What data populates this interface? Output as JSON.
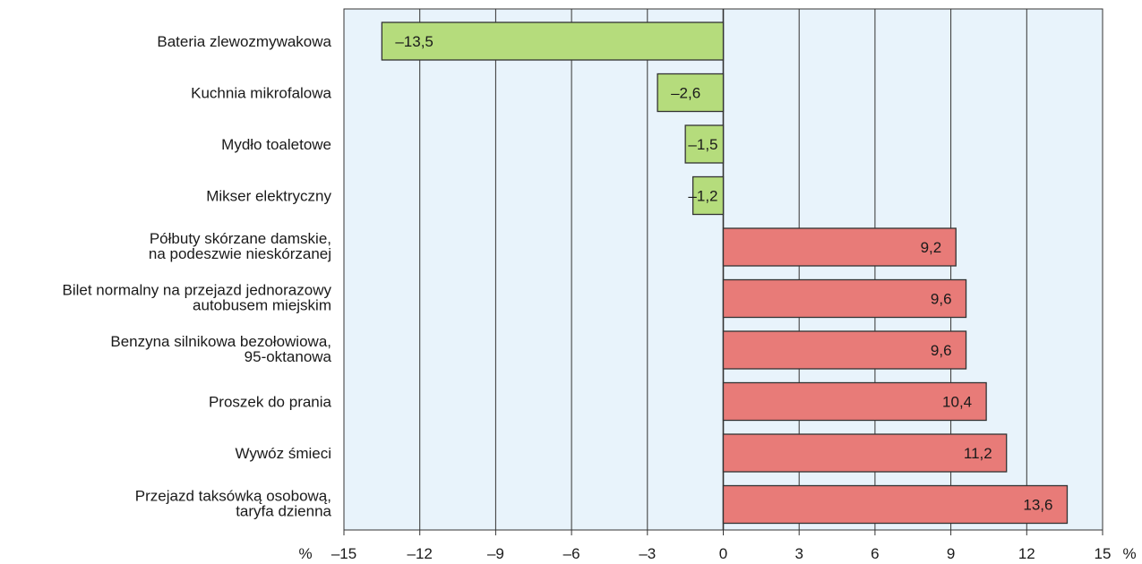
{
  "chart_data": {
    "type": "bar",
    "orientation": "horizontal",
    "categories": [
      [
        "Bateria zlewozmywakowa"
      ],
      [
        "Kuchnia mikrofalowa"
      ],
      [
        "Mydło toaletowe"
      ],
      [
        "Mikser elektryczny"
      ],
      [
        "Półbuty skórzane damskie,",
        "na podeszwie nieskórzanej"
      ],
      [
        "Bilet normalny na przejazd jednorazowy",
        "autobusem miejskim"
      ],
      [
        "Benzyna silnikowa bezołowiowa,",
        "95-oktanowa"
      ],
      [
        "Proszek do prania"
      ],
      [
        "Wywóz śmieci"
      ],
      [
        "Przejazd taksówką osobową,",
        "taryfa dzienna"
      ]
    ],
    "values": [
      -13.5,
      -2.6,
      -1.5,
      -1.2,
      9.2,
      9.6,
      9.6,
      10.4,
      11.2,
      13.6
    ],
    "value_labels": [
      "–13,5",
      "–2,6",
      "–1,5",
      "–1,2",
      "9,2",
      "9,6",
      "9,6",
      "10,4",
      "11,2",
      "13,6"
    ],
    "xlim": [
      -15,
      15
    ],
    "xticks": [
      -15,
      -12,
      -9,
      -6,
      -3,
      0,
      3,
      6,
      9,
      12,
      15
    ],
    "xtick_labels": [
      "–15",
      "–12",
      "–9",
      "–6",
      "–3",
      "0",
      "3",
      "6",
      "9",
      "12",
      "15"
    ],
    "unit_label": "%",
    "grid": true,
    "colors": {
      "negative": "#b5dc7c",
      "positive": "#e87b78",
      "plot_background": "#e8f3fb",
      "bar_border": "#333333",
      "gridline": "#333333"
    }
  }
}
